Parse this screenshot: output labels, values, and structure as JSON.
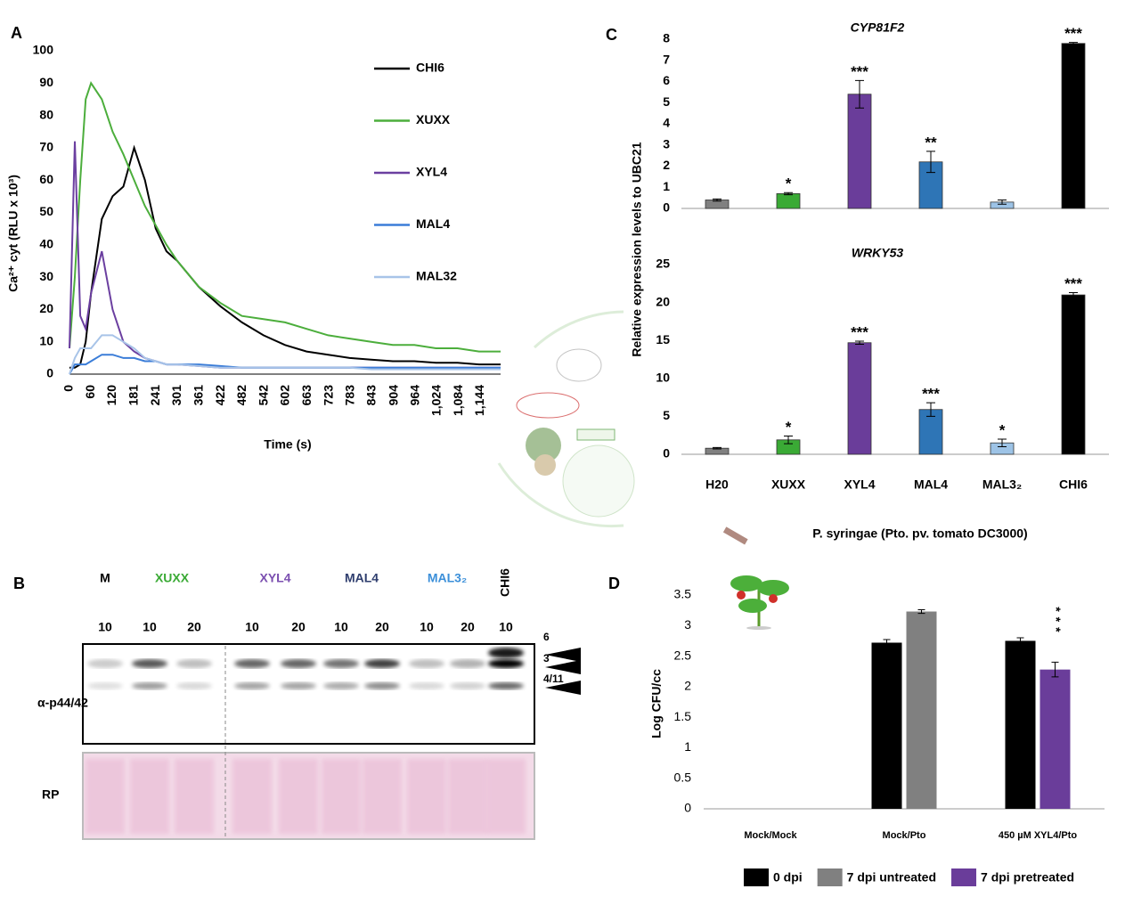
{
  "panel_labels": [
    "A",
    "B",
    "C",
    "D"
  ],
  "chart_data": [
    {
      "type": "line",
      "xlabel": "Time  (s)",
      "ylabel": "Ca²⁺ cyt (RLU x 10³)",
      "x": [
        0,
        15,
        30,
        45,
        60,
        90,
        120,
        150,
        180,
        210,
        240,
        270,
        300,
        360,
        420,
        480,
        540,
        600,
        660,
        720,
        780,
        840,
        900,
        960,
        1020,
        1080,
        1140,
        1200
      ],
      "xlim": [
        0,
        1200
      ],
      "xticks": [
        0,
        60,
        120,
        181,
        241,
        301,
        361,
        422,
        482,
        542,
        602,
        663,
        723,
        783,
        843,
        904,
        964,
        {
          "value": 1024,
          "label": "1,024"
        },
        {
          "value": 1084,
          "label": "1,084"
        },
        {
          "value": 1144,
          "label": "1,144"
        }
      ],
      "ylim": [
        0,
        100
      ],
      "yticks": [
        0,
        10,
        20,
        30,
        40,
        50,
        60,
        70,
        80,
        90,
        100
      ],
      "legend": "right",
      "series": [
        {
          "name": "CHI6",
          "color": "#000000",
          "values": [
            2,
            2,
            3,
            10,
            25,
            48,
            55,
            58,
            70,
            60,
            45,
            38,
            35,
            27,
            21,
            16,
            12,
            9,
            7,
            6,
            5,
            4.5,
            4,
            4,
            3.5,
            3.5,
            3,
            3
          ]
        },
        {
          "name": "XUXX",
          "color": "#4cae3c",
          "values": [
            8,
            30,
            60,
            85,
            90,
            85,
            75,
            68,
            60,
            52,
            46,
            40,
            35,
            27,
            22,
            18,
            17,
            16,
            14,
            12,
            11,
            10,
            9,
            9,
            8,
            8,
            7,
            7
          ]
        },
        {
          "name": "XYL4",
          "color": "#6b3fa0",
          "values": [
            8,
            72,
            18,
            14,
            25,
            38,
            20,
            10,
            7,
            5,
            4,
            3,
            3,
            2.5,
            2,
            2,
            2,
            2,
            2,
            2,
            2,
            2,
            2,
            2,
            2,
            2,
            2,
            2
          ]
        },
        {
          "name": "MAL4",
          "color": "#3b7dd8",
          "values": [
            0,
            3,
            3,
            3,
            4,
            6,
            6,
            5,
            5,
            4,
            4,
            3,
            3,
            3,
            2.5,
            2,
            2,
            2,
            2,
            2,
            2,
            2,
            2,
            2,
            2,
            2,
            2,
            2
          ]
        },
        {
          "name": "MAL32",
          "color": "#a8c4e8",
          "values": [
            0,
            5,
            8,
            8,
            8,
            12,
            12,
            10,
            8,
            5,
            4,
            3,
            3,
            2.5,
            2,
            2,
            2,
            2,
            2,
            2,
            2,
            1.5,
            1.5,
            1.5,
            1.5,
            1.5,
            1.5,
            1.5
          ]
        }
      ]
    },
    {
      "type": "bar",
      "title": "CYP81F2",
      "ylabel": "Relative expression levels to UBC21",
      "values": [
        0.4,
        0.7,
        5.4,
        2.2,
        0.3,
        7.8
      ],
      "errors": [
        0.05,
        0.05,
        0.65,
        0.5,
        0.1,
        0.05
      ],
      "colors": [
        "#808080",
        "#3aaa35",
        "#6a3d9a",
        "#2e75b6",
        "#9dc3e6",
        "#000000"
      ],
      "significance": [
        null,
        "*",
        "***",
        "**",
        null,
        "***"
      ],
      "ylim": [
        0,
        8
      ],
      "yticks": [
        0,
        1,
        2,
        3,
        4,
        5,
        6,
        7,
        8
      ]
    },
    {
      "type": "bar",
      "title": "WRKY53",
      "categories": [
        "H20",
        "XUXX",
        "XYL4",
        "MAL4",
        "MAL3₂",
        "CHI6"
      ],
      "values": [
        0.8,
        1.9,
        14.7,
        5.9,
        1.5,
        21.0
      ],
      "errors": [
        0.1,
        0.5,
        0.2,
        0.9,
        0.5,
        0.3
      ],
      "colors": [
        "#808080",
        "#3aaa35",
        "#6a3d9a",
        "#2e75b6",
        "#9dc3e6",
        "#000000"
      ],
      "significance": [
        null,
        "*",
        "***",
        "***",
        "*",
        "***"
      ],
      "ylim": [
        0,
        25
      ],
      "yticks": [
        0,
        5,
        10,
        15,
        20,
        25
      ]
    },
    {
      "type": "grouped-bar",
      "title": "P. syringae (Pto. pv. tomato DC3000)",
      "ylabel": "Log CFU/cc",
      "categories": [
        "Mock/Mock",
        "Mock/Pto",
        "450 µM XYL4/Pto"
      ],
      "ylim": [
        0,
        3.5
      ],
      "yticks": [
        0,
        0.5,
        1,
        1.5,
        2,
        2.5,
        3,
        3.5
      ],
      "legend": "bottom",
      "series": [
        {
          "name": "0 dpi",
          "color": "#000000",
          "values": [
            null,
            2.72,
            2.75
          ],
          "errors": [
            null,
            0.05,
            0.05
          ],
          "significance": [
            null,
            null,
            null
          ]
        },
        {
          "name": "7 dpi untreated",
          "color": "#808080",
          "values": [
            null,
            3.23,
            null
          ],
          "errors": [
            null,
            0.03,
            null
          ],
          "significance": [
            null,
            null,
            null
          ]
        },
        {
          "name": "7 dpi pretreated",
          "color": "#6a3d9a",
          "values": [
            null,
            null,
            2.28
          ],
          "errors": [
            null,
            null,
            0.12
          ],
          "significance": [
            null,
            null,
            "***"
          ]
        }
      ]
    }
  ],
  "blot": {
    "antibody": "α-p44/42",
    "loading": "RP",
    "markers": [
      "6",
      "3",
      "4/11"
    ],
    "groups": [
      {
        "label": "M",
        "color": "#000000",
        "lanes": [
          10
        ]
      },
      {
        "label": "XUXX",
        "color": "#3aaa35",
        "lanes": [
          10,
          20
        ]
      },
      {
        "label": "XYL4",
        "color": "#7b4fb0",
        "lanes": [
          10,
          20
        ]
      },
      {
        "label": "MAL4",
        "color": "#2f3e6e",
        "lanes": [
          10,
          20
        ]
      },
      {
        "label": "MAL3₂",
        "color": "#3b8fd9",
        "lanes": [
          10,
          20
        ]
      },
      {
        "label": "CHI6",
        "color": "#000000",
        "lanes": [
          10
        ]
      }
    ]
  }
}
